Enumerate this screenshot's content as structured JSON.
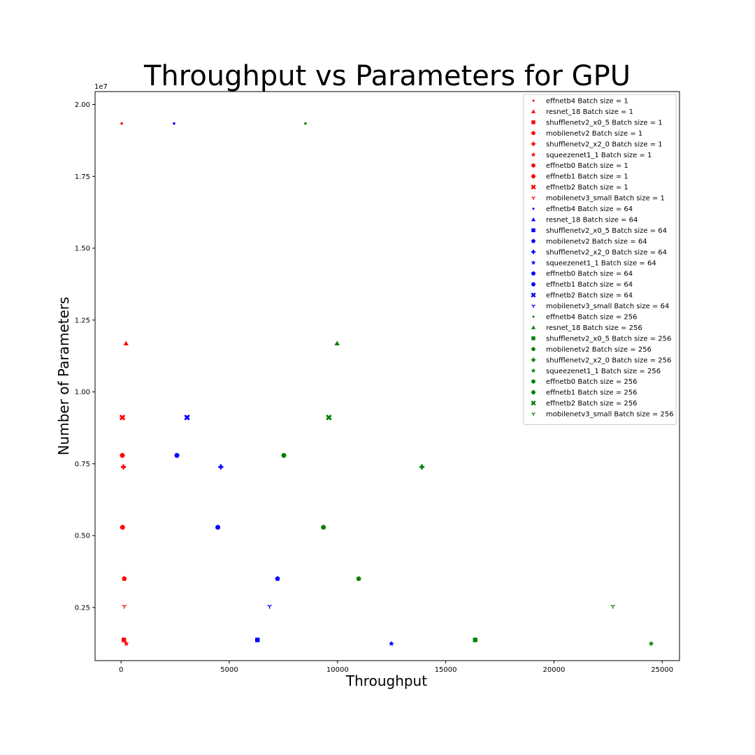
{
  "chart_data": {
    "type": "scatter",
    "title": "Throughput vs Parameters for GPU",
    "xlabel": "Throughput",
    "ylabel": "Number of Parameters",
    "y_offset_label": "1e7",
    "xlim": [
      -1200,
      25800
    ],
    "ylim": [
      650000,
      20450000
    ],
    "x_ticks": [
      0,
      5000,
      10000,
      15000,
      20000,
      25000
    ],
    "x_tick_labels": [
      "0",
      "5000",
      "10000",
      "15000",
      "20000",
      "25000"
    ],
    "y_ticks": [
      2500000,
      5000000,
      7500000,
      10000000,
      12500000,
      15000000,
      17500000,
      20000000
    ],
    "y_tick_labels": [
      "0.25",
      "0.50",
      "0.75",
      "1.00",
      "1.25",
      "1.50",
      "1.75",
      "2.00"
    ],
    "grid": false,
    "legend_position": "top-right",
    "colors": {
      "batch_1": "#ff0000",
      "batch_64": "#0000ff",
      "batch_256": "#008000"
    },
    "series": [
      {
        "name": "effnetb4 Batch size = 1",
        "color": "#ff0000",
        "marker": "point",
        "points": [
          [
            30,
            19340000
          ]
        ]
      },
      {
        "name": "resnet_18 Batch size = 1",
        "color": "#ff0000",
        "marker": "triangle",
        "points": [
          [
            230,
            11690000
          ]
        ]
      },
      {
        "name": "shufflenetv2_x0_5 Batch size = 1",
        "color": "#ff0000",
        "marker": "square",
        "points": [
          [
            130,
            1370000
          ]
        ]
      },
      {
        "name": "mobilenetv2 Batch size = 1",
        "color": "#ff0000",
        "marker": "pentagon",
        "points": [
          [
            150,
            3500000
          ]
        ]
      },
      {
        "name": "shufflenetv2_x2_0 Batch size = 1",
        "color": "#ff0000",
        "marker": "plus",
        "points": [
          [
            110,
            7390000
          ]
        ]
      },
      {
        "name": "squeezenet1_1 Batch size = 1",
        "color": "#ff0000",
        "marker": "star",
        "points": [
          [
            240,
            1240000
          ]
        ]
      },
      {
        "name": "effnetb0 Batch size = 1",
        "color": "#ff0000",
        "marker": "hexagon1",
        "points": [
          [
            70,
            5290000
          ]
        ]
      },
      {
        "name": "effnetb1 Batch size = 1",
        "color": "#ff0000",
        "marker": "hexagon2",
        "points": [
          [
            60,
            7790000
          ]
        ]
      },
      {
        "name": "effnetb2 Batch size = 1",
        "color": "#ff0000",
        "marker": "x",
        "points": [
          [
            60,
            9110000
          ]
        ]
      },
      {
        "name": "mobilenetv3_small Batch size = 1",
        "color": "#ff0000",
        "marker": "tri_down",
        "points": [
          [
            150,
            2540000
          ]
        ]
      },
      {
        "name": "effnetb4 Batch size = 64",
        "color": "#0000ff",
        "marker": "point",
        "points": [
          [
            2450,
            19340000
          ]
        ]
      },
      {
        "name": "resnet_18 Batch size = 64",
        "color": "#0000ff",
        "marker": "triangle",
        "points": [
          [
            9980,
            11690000
          ]
        ]
      },
      {
        "name": "shufflenetv2_x0_5 Batch size = 64",
        "color": "#0000ff",
        "marker": "square",
        "points": [
          [
            6300,
            1370000
          ]
        ]
      },
      {
        "name": "mobilenetv2 Batch size = 64",
        "color": "#0000ff",
        "marker": "pentagon",
        "points": [
          [
            7230,
            3500000
          ]
        ]
      },
      {
        "name": "shufflenetv2_x2_0 Batch size = 64",
        "color": "#0000ff",
        "marker": "plus",
        "points": [
          [
            4610,
            7390000
          ]
        ]
      },
      {
        "name": "squeezenet1_1 Batch size = 64",
        "color": "#0000ff",
        "marker": "star",
        "points": [
          [
            12490,
            1240000
          ]
        ]
      },
      {
        "name": "effnetb0 Batch size = 64",
        "color": "#0000ff",
        "marker": "hexagon1",
        "points": [
          [
            4470,
            5290000
          ]
        ]
      },
      {
        "name": "effnetb1 Batch size = 64",
        "color": "#0000ff",
        "marker": "hexagon2",
        "points": [
          [
            2580,
            7790000
          ]
        ]
      },
      {
        "name": "effnetb2 Batch size = 64",
        "color": "#0000ff",
        "marker": "x",
        "points": [
          [
            3050,
            9110000
          ]
        ]
      },
      {
        "name": "mobilenetv3_small Batch size = 64",
        "color": "#0000ff",
        "marker": "tri_down",
        "points": [
          [
            6860,
            2540000
          ]
        ]
      },
      {
        "name": "effnetb4 Batch size = 256",
        "color": "#008000",
        "marker": "point",
        "points": [
          [
            8520,
            19340000
          ]
        ]
      },
      {
        "name": "resnet_18 Batch size = 256",
        "color": "#008000",
        "marker": "triangle",
        "points": [
          [
            9980,
            11690000
          ]
        ]
      },
      {
        "name": "shufflenetv2_x0_5 Batch size = 256",
        "color": "#008000",
        "marker": "square",
        "points": [
          [
            16360,
            1370000
          ]
        ]
      },
      {
        "name": "mobilenetv2 Batch size = 256",
        "color": "#008000",
        "marker": "pentagon",
        "points": [
          [
            10980,
            3500000
          ]
        ]
      },
      {
        "name": "shufflenetv2_x2_0 Batch size = 256",
        "color": "#008000",
        "marker": "plus",
        "points": [
          [
            13900,
            7390000
          ]
        ]
      },
      {
        "name": "squeezenet1_1 Batch size = 256",
        "color": "#008000",
        "marker": "star",
        "points": [
          [
            24490,
            1240000
          ]
        ]
      },
      {
        "name": "effnetb0 Batch size = 256",
        "color": "#008000",
        "marker": "hexagon1",
        "points": [
          [
            9350,
            5290000
          ]
        ]
      },
      {
        "name": "effnetb1 Batch size = 256",
        "color": "#008000",
        "marker": "hexagon2",
        "points": [
          [
            7520,
            7790000
          ]
        ]
      },
      {
        "name": "effnetb2 Batch size = 256",
        "color": "#008000",
        "marker": "x",
        "points": [
          [
            9600,
            9110000
          ]
        ]
      },
      {
        "name": "mobilenetv3_small Batch size = 256",
        "color": "#008000",
        "marker": "tri_down",
        "points": [
          [
            22720,
            2540000
          ]
        ]
      }
    ]
  }
}
